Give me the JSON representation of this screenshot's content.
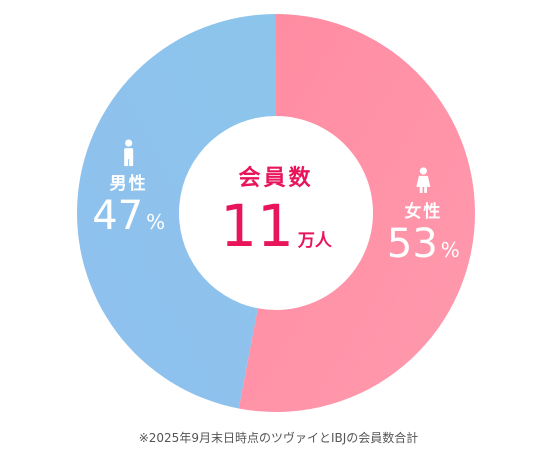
{
  "chart_data": {
    "type": "pie",
    "donut": true,
    "start": "top",
    "direction": "clockwise",
    "slices": [
      {
        "label": "女性",
        "value": 53,
        "unit": "%",
        "icon": "female-icon",
        "color_start": "#ff8ba1",
        "color_end": "#ff9aae"
      },
      {
        "label": "男性",
        "value": 47,
        "unit": "%",
        "icon": "male-icon",
        "color_start": "#8cc5ec",
        "color_end": "#8fc0ee"
      }
    ],
    "center": {
      "title": "会員数",
      "value": "11",
      "unit": "万人",
      "color": "#e8155b"
    },
    "label_color": "#ffffff"
  },
  "footnote": "※2025年9月末日時点のツヴァイとIBJの会員数合計"
}
